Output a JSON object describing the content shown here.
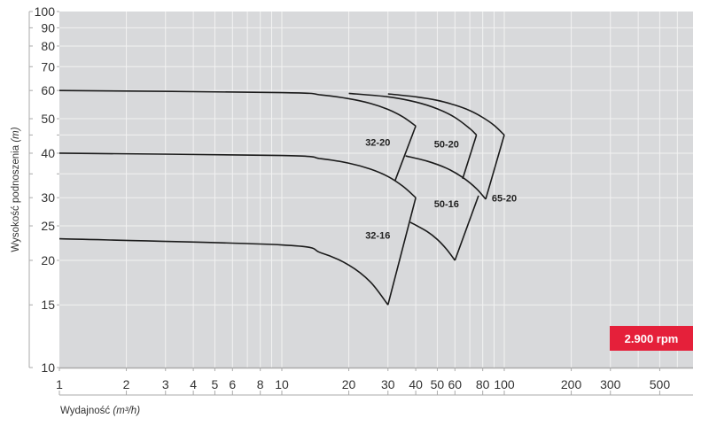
{
  "chart_data": {
    "type": "line",
    "xlabel": "Wydajność",
    "xunit": "(m³/h)",
    "ylabel": "Wysokość podnoszenia",
    "yunit": "(m)",
    "xscale": "log",
    "yscale": "log",
    "xlim": [
      1,
      700
    ],
    "ylim": [
      10,
      100
    ],
    "grid": true,
    "x_ticks": [
      1,
      2,
      3,
      4,
      5,
      6,
      8,
      10,
      20,
      30,
      40,
      50,
      60,
      80,
      100,
      200,
      300,
      500
    ],
    "x_grid": [
      1,
      2,
      3,
      4,
      5,
      6,
      7,
      8,
      9,
      10,
      20,
      30,
      40,
      50,
      60,
      70,
      80,
      90,
      100,
      200,
      300,
      400,
      500,
      600
    ],
    "y_ticks": [
      10,
      15,
      20,
      25,
      30,
      40,
      50,
      60,
      70,
      80,
      90,
      100
    ],
    "y_minor_ticks": [
      35,
      45
    ],
    "badge": "2.900 rpm",
    "colors": {
      "plot_bg": "#d8d9db",
      "grid": "#f2f2f2",
      "curve": "#1a1a1a",
      "badge": "#e5203a"
    },
    "curves": [
      {
        "points": [
          [
            1,
            60
          ],
          [
            10,
            59.2
          ],
          [
            15,
            58.3
          ],
          [
            20,
            56.9
          ],
          [
            25,
            55.2
          ],
          [
            30,
            53.1
          ],
          [
            35,
            50.6
          ],
          [
            40,
            47.7
          ]
        ]
      },
      {
        "points": [
          [
            20,
            58.9
          ],
          [
            30,
            57.6
          ],
          [
            40,
            55.7
          ],
          [
            50,
            53.3
          ],
          [
            60,
            50.4
          ],
          [
            70,
            46.9
          ],
          [
            75,
            45
          ]
        ]
      },
      {
        "points": [
          [
            30,
            58.7
          ],
          [
            40,
            57.6
          ],
          [
            50,
            56.3
          ],
          [
            60,
            54.6
          ],
          [
            70,
            52.7
          ],
          [
            80,
            50.4
          ],
          [
            90,
            47.9
          ],
          [
            100,
            45
          ]
        ]
      },
      {
        "points": [
          [
            1,
            40
          ],
          [
            10,
            39.4
          ],
          [
            15,
            38.6
          ],
          [
            20,
            37.5
          ],
          [
            25,
            36.1
          ],
          [
            30,
            34.4
          ],
          [
            35,
            32.3
          ],
          [
            40,
            30
          ]
        ]
      },
      {
        "points": [
          [
            36,
            39.3
          ],
          [
            45,
            38.0
          ],
          [
            55,
            36.3
          ],
          [
            65,
            34.2
          ],
          [
            75,
            31.8
          ],
          [
            82.5,
            29.7
          ]
        ]
      },
      {
        "points": [
          [
            1,
            23
          ],
          [
            10,
            22.1
          ],
          [
            15,
            21
          ],
          [
            20,
            19.4
          ],
          [
            25,
            17.4
          ],
          [
            30,
            15
          ]
        ]
      },
      {
        "points": [
          [
            37.8,
            25.6
          ],
          [
            45,
            24.1
          ],
          [
            50,
            22.9
          ],
          [
            55,
            21.5
          ],
          [
            60,
            20
          ]
        ]
      },
      {
        "points": [
          [
            40,
            47.7
          ],
          [
            32.3,
            33.5
          ]
        ]
      },
      {
        "points": [
          [
            75,
            45
          ],
          [
            65,
            33.9
          ]
        ]
      },
      {
        "points": [
          [
            100,
            45
          ],
          [
            82.5,
            29.7
          ]
        ]
      },
      {
        "points": [
          [
            40,
            30
          ],
          [
            30,
            15
          ]
        ]
      },
      {
        "points": [
          [
            60,
            20
          ],
          [
            76.6,
            30.4
          ]
        ]
      }
    ],
    "labels": [
      {
        "text": "32-20",
        "x": 27,
        "y": 42
      },
      {
        "text": "50-20",
        "x": 55,
        "y": 41.5
      },
      {
        "text": "65-20",
        "x": 100,
        "y": 29.3
      },
      {
        "text": "50-16",
        "x": 55,
        "y": 28.2
      },
      {
        "text": "32-16",
        "x": 27,
        "y": 23
      }
    ]
  }
}
